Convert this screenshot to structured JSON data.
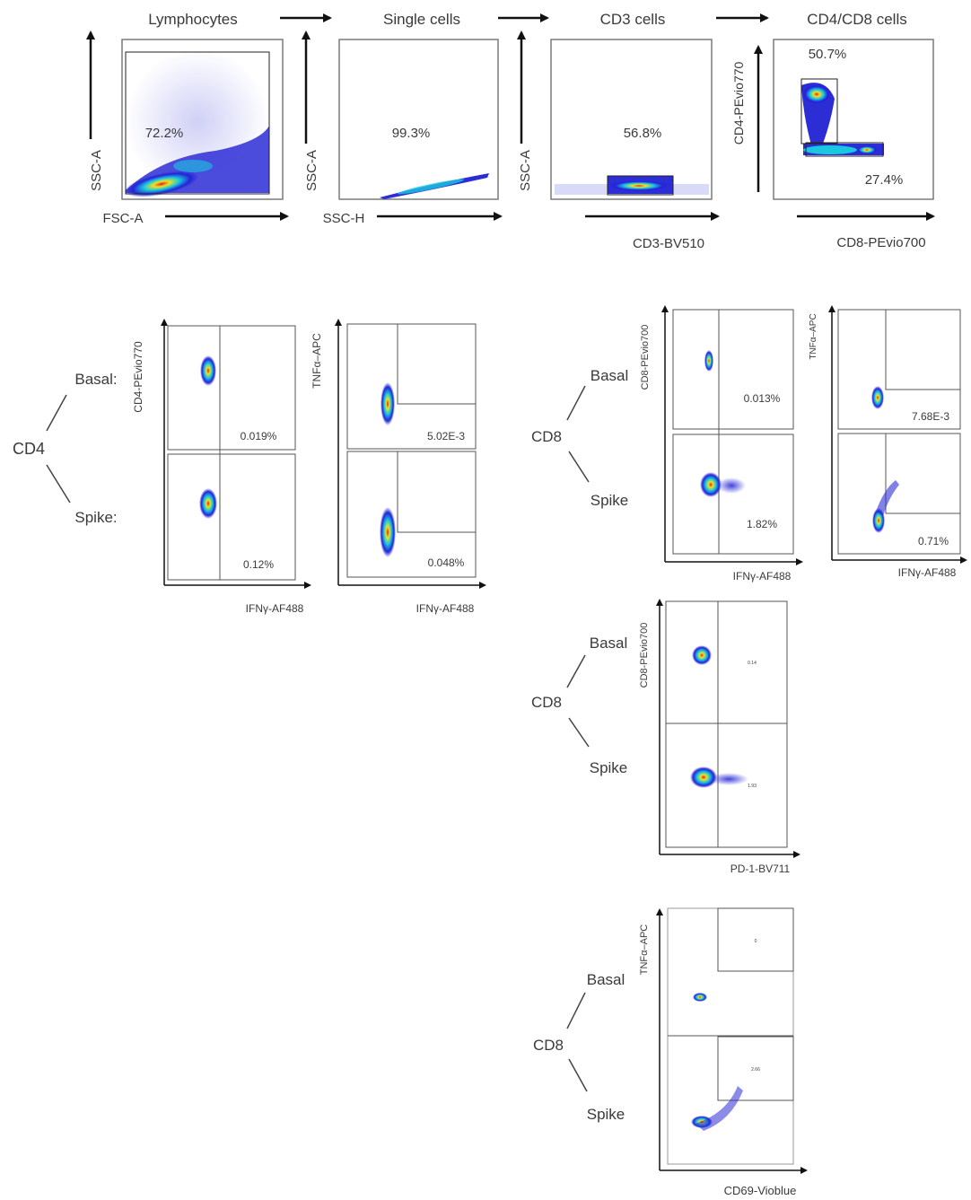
{
  "gating": {
    "titles": [
      "Lymphocytes",
      "Single cells",
      "CD3 cells",
      "CD4/CD8 cells"
    ],
    "plots": [
      {
        "y_axis": "SSC-A",
        "x_axis": "FSC-A",
        "gate_pct": "72.2%"
      },
      {
        "y_axis": "SSC-A",
        "x_axis": "SSC-H",
        "gate_pct": "99.3%"
      },
      {
        "y_axis": "SSC-A",
        "x_axis": "CD3-BV510",
        "gate_pct": "56.8%"
      },
      {
        "y_axis": "CD4-PEvio770",
        "x_axis": "CD8-PEvio700",
        "gate_pct_top": "50.7%",
        "gate_pct_bottom": "27.4%"
      }
    ]
  },
  "cd4_panel": {
    "group_label": "CD4",
    "row_labels": [
      "Basal:",
      "Spike:"
    ],
    "plot1": {
      "y_axis": "CD4-PEvio770",
      "x_axis": "IFNγ-AF488",
      "basal_pct": "0.019%",
      "spike_pct": "0.12%"
    },
    "plot2": {
      "y_axis": "TNFα–APC",
      "x_axis": "IFNγ-AF488",
      "basal_pct": "5.02E-3",
      "spike_pct": "0.048%"
    }
  },
  "cd8_panel1": {
    "group_label": "CD8",
    "row_labels": [
      "Basal",
      "Spike"
    ],
    "plot1": {
      "y_axis": "CD8-PEvio700",
      "x_axis": "IFNγ-AF488",
      "basal_pct": "0.013%",
      "spike_pct": "1.82%"
    },
    "plot2": {
      "y_axis": "TNFα–APC",
      "x_axis": "IFNγ-AF488",
      "basal_pct": "7.68E-3",
      "spike_pct": "0.71%"
    }
  },
  "cd8_panel2": {
    "group_label": "CD8",
    "row_labels": [
      "Basal",
      "Spike"
    ],
    "plot": {
      "y_axis": "CD8-PEvio700",
      "x_axis": "PD-1-BV711",
      "basal_pct": "0.14",
      "spike_pct": "1.93"
    }
  },
  "cd8_panel3": {
    "group_label": "CD8",
    "row_labels": [
      "Basal",
      "Spike"
    ],
    "plot": {
      "y_axis": "TNFα–APC",
      "x_axis": "CD69-Vioblue",
      "basal_pct": "0",
      "spike_pct": "2.66"
    }
  },
  "colors": {
    "axis": "#1a1a1a",
    "frame": "#7a7a7a",
    "density_low": "#2323d8",
    "density_mid": "#19c8e0",
    "density_high": "#f0e020",
    "density_peak": "#e02020"
  }
}
